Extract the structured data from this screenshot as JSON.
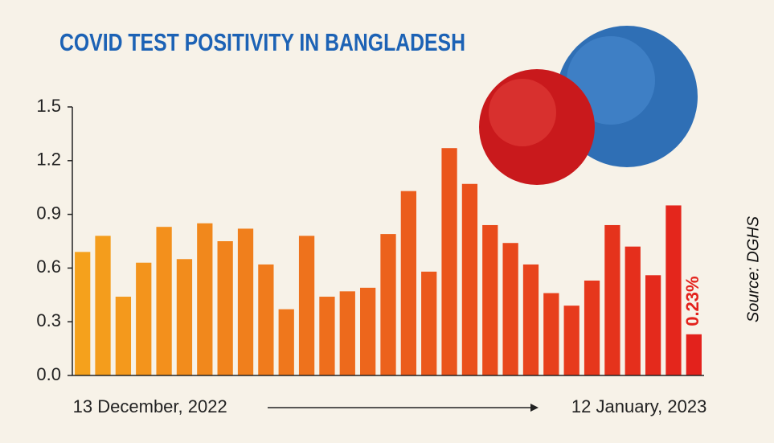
{
  "chart_data": {
    "type": "bar",
    "title": "COVID TEST POSITIVITY IN BANGLADESH",
    "source": "Source: DGHS",
    "categories": [
      "13 December, 2022",
      null,
      null,
      null,
      null,
      null,
      null,
      null,
      null,
      null,
      null,
      null,
      null,
      null,
      null,
      null,
      null,
      null,
      null,
      null,
      null,
      null,
      null,
      null,
      null,
      null,
      null,
      null,
      null,
      null,
      "12 January, 2023"
    ],
    "values": [
      0.69,
      0.78,
      0.44,
      0.63,
      0.83,
      0.65,
      0.85,
      0.75,
      0.82,
      0.62,
      0.37,
      0.78,
      0.44,
      0.47,
      0.49,
      0.79,
      1.03,
      0.58,
      1.27,
      1.07,
      0.84,
      0.74,
      0.62,
      0.46,
      0.39,
      0.53,
      0.84,
      0.72,
      0.56,
      0.95,
      0.23
    ],
    "value_labels": [
      null,
      null,
      null,
      null,
      null,
      null,
      null,
      null,
      null,
      null,
      null,
      null,
      null,
      null,
      null,
      null,
      null,
      null,
      null,
      null,
      null,
      null,
      null,
      null,
      null,
      null,
      null,
      null,
      null,
      null,
      "0.23%"
    ],
    "color_start": "#f5a11c",
    "color_end": "#e3221c",
    "ylim": [
      0,
      1.5
    ],
    "yticks": [
      {
        "value": 0,
        "label": "0.0"
      },
      0.3,
      0.6,
      0.9,
      1.2,
      1.5
    ]
  }
}
